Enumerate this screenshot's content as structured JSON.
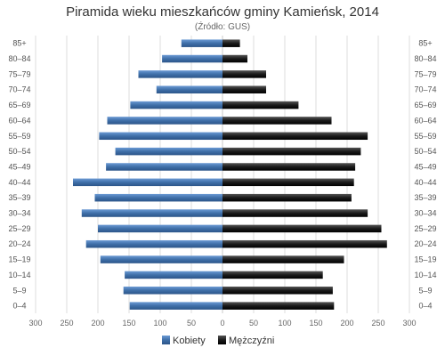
{
  "chart_data": {
    "type": "bar",
    "orientation": "horizontal-population-pyramid",
    "title": "Piramida wieku mieszkańców gminy Kamieńsk, 2014",
    "subtitle": "(Źródło: GUS)",
    "categories": [
      "85+",
      "80-84",
      "75-79",
      "70-74",
      "65-69",
      "60-64",
      "55-59",
      "50-54",
      "45-49",
      "40-44",
      "35-39",
      "30-34",
      "25-29",
      "20-24",
      "15-19",
      "10-14",
      "5-9",
      "0-4"
    ],
    "series": [
      {
        "name": "Kobiety",
        "color": "#3f6fa8",
        "side": "left",
        "values": [
          66,
          97,
          135,
          106,
          148,
          185,
          198,
          172,
          187,
          240,
          205,
          226,
          200,
          219,
          196,
          157,
          159,
          149
        ]
      },
      {
        "name": "Mężczyźni",
        "color": "#1a1a1a",
        "side": "right",
        "values": [
          28,
          40,
          70,
          70,
          122,
          175,
          233,
          222,
          213,
          211,
          207,
          233,
          255,
          264,
          195,
          161,
          177,
          179
        ]
      }
    ],
    "x_ticks": [
      "300",
      "250",
      "200",
      "150",
      "100",
      "50",
      "0",
      "50",
      "100",
      "150",
      "200",
      "250",
      "300"
    ],
    "xlim": [
      -300,
      300
    ],
    "grid": true,
    "legend_position": "bottom-center"
  }
}
